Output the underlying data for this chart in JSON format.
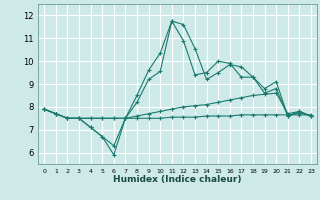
{
  "xlabel": "Humidex (Indice chaleur)",
  "background_color": "#ceeae8",
  "grid_color": "#ffffff",
  "line_color": "#1a7a6e",
  "xlim": [
    -0.5,
    23.5
  ],
  "ylim": [
    5.5,
    12.5
  ],
  "yticks": [
    6,
    7,
    8,
    9,
    10,
    11,
    12
  ],
  "xticks": [
    0,
    1,
    2,
    3,
    4,
    5,
    6,
    7,
    8,
    9,
    10,
    11,
    12,
    13,
    14,
    15,
    16,
    17,
    18,
    19,
    20,
    21,
    22,
    23
  ],
  "series": [
    [
      7.9,
      7.7,
      7.5,
      7.5,
      7.1,
      6.7,
      6.3,
      7.5,
      8.2,
      9.2,
      9.55,
      11.75,
      11.6,
      10.55,
      9.2,
      9.5,
      9.85,
      9.75,
      9.3,
      8.8,
      9.1,
      7.6,
      7.75,
      7.6
    ],
    [
      7.9,
      7.7,
      7.5,
      7.5,
      7.1,
      6.7,
      5.9,
      7.5,
      8.5,
      9.6,
      10.35,
      11.75,
      10.9,
      9.4,
      9.5,
      10.0,
      9.9,
      9.3,
      9.3,
      8.6,
      8.8,
      7.6,
      7.8,
      7.6
    ],
    [
      7.9,
      7.7,
      7.5,
      7.5,
      7.5,
      7.5,
      7.5,
      7.5,
      7.6,
      7.7,
      7.8,
      7.9,
      8.0,
      8.05,
      8.1,
      8.2,
      8.3,
      8.4,
      8.5,
      8.55,
      8.6,
      7.7,
      7.8,
      7.6
    ],
    [
      7.9,
      7.7,
      7.5,
      7.5,
      7.5,
      7.5,
      7.5,
      7.5,
      7.5,
      7.5,
      7.5,
      7.55,
      7.55,
      7.55,
      7.6,
      7.6,
      7.6,
      7.65,
      7.65,
      7.65,
      7.65,
      7.65,
      7.65,
      7.65
    ]
  ]
}
